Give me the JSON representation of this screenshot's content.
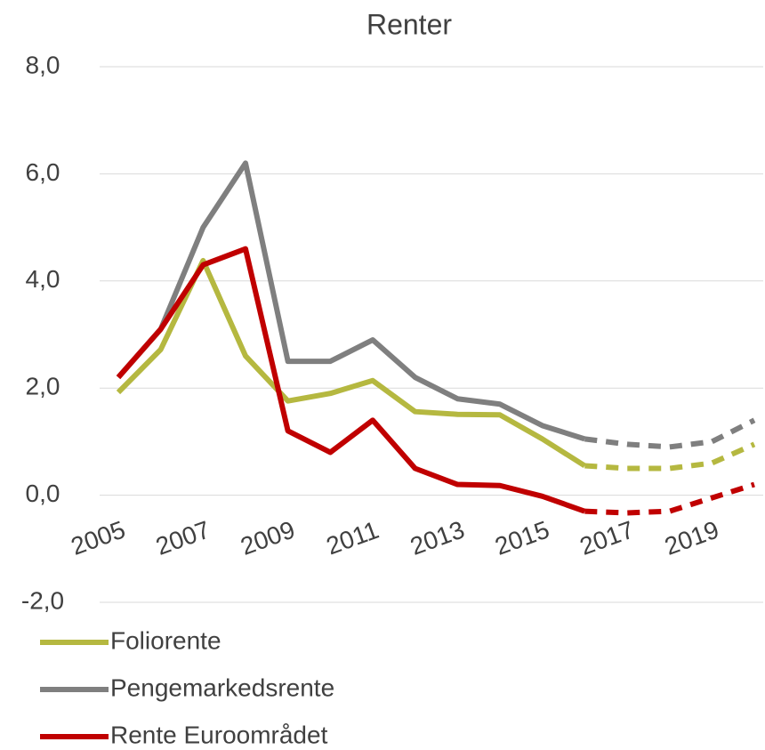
{
  "chart_data": {
    "type": "line",
    "title": "Renter",
    "categories": [
      "2005",
      null,
      "2007",
      null,
      "2009",
      null,
      "2011",
      null,
      "2013",
      null,
      "2015",
      null,
      "2017",
      null,
      "2019",
      null
    ],
    "series": [
      {
        "name": "Foliorente",
        "color": "#b5b840",
        "values": [
          1.92,
          2.72,
          4.38,
          2.6,
          1.76,
          1.9,
          2.14,
          1.56,
          1.51,
          1.5,
          1.05,
          0.55,
          0.5,
          0.5,
          0.6,
          0.95
        ]
      },
      {
        "name": "Pengemarkedsrente",
        "color": "#7f7f7f",
        "values": [
          2.2,
          3.1,
          5.0,
          6.2,
          2.5,
          2.5,
          2.9,
          2.2,
          1.8,
          1.7,
          1.3,
          1.05,
          0.95,
          0.9,
          1.0,
          1.4
        ]
      },
      {
        "name": "Rente Euroområdet",
        "color": "#c00000",
        "values": [
          2.2,
          3.1,
          4.3,
          4.6,
          1.2,
          0.8,
          1.4,
          0.5,
          0.2,
          0.18,
          -0.02,
          -0.3,
          -0.33,
          -0.3,
          -0.05,
          0.2
        ]
      }
    ],
    "dash_from_index": 11,
    "ylim": [
      -2,
      8
    ],
    "yticks": [
      {
        "value": -2,
        "label": "-2,0"
      },
      {
        "value": 0,
        "label": "0,0"
      },
      {
        "value": 2,
        "label": "2,0"
      },
      {
        "value": 4,
        "label": "4,0"
      },
      {
        "value": 6,
        "label": "6,0"
      },
      {
        "value": 8,
        "label": "8,0"
      }
    ],
    "grid": true,
    "legend": "bottom"
  }
}
